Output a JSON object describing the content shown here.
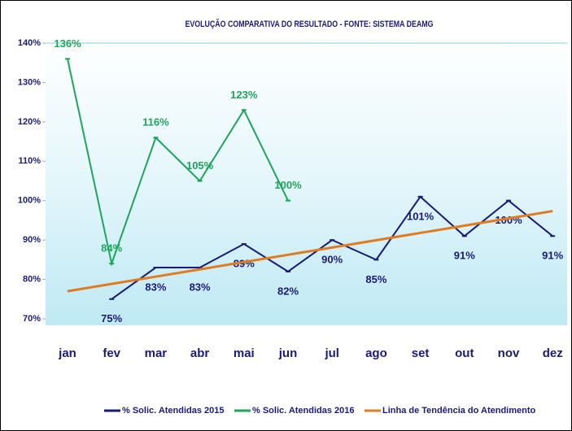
{
  "chart_data": {
    "type": "line",
    "title": "EVOLUÇÃO COMPARATIVA DO RESULTADO - FONTE: SISTEMA DEAMG",
    "categories": [
      "jan",
      "fev",
      "mar",
      "abr",
      "mai",
      "jun",
      "jul",
      "ago",
      "set",
      "out",
      "nov",
      "dez"
    ],
    "series": [
      {
        "name": "% Solic. Atendidas 2015",
        "color": "#1a1a7a",
        "values": [
          null,
          75,
          83,
          83,
          89,
          82,
          90,
          85,
          101,
          91,
          100,
          91
        ],
        "value_labels": [
          null,
          "75%",
          "83%",
          "83%",
          "89%",
          "82%",
          "90%",
          "85%",
          "101%",
          "91%",
          "100%",
          "91%"
        ]
      },
      {
        "name": "% Solic. Atendidas 2016",
        "color": "#1fa55a",
        "values": [
          136,
          84,
          116,
          105,
          123,
          100,
          null,
          null,
          null,
          null,
          null,
          null
        ],
        "value_labels": [
          "136%",
          "84%",
          "116%",
          "105%",
          "123%",
          "100%",
          null,
          null,
          null,
          null,
          null,
          null
        ]
      },
      {
        "name": "Linha de Tendência do Atendimento",
        "color": "#e07b20",
        "values": [
          77,
          78.85,
          80.7,
          82.55,
          84.4,
          86.25,
          88.1,
          89.95,
          91.8,
          93.65,
          95.5,
          97.35
        ]
      }
    ],
    "ylim": [
      70,
      140
    ],
    "yticks": [
      {
        "value": 70,
        "label": "70%"
      },
      {
        "value": 80,
        "label": "80%"
      },
      {
        "value": 90,
        "label": "90%"
      },
      {
        "value": 100,
        "label": "100%"
      },
      {
        "value": 110,
        "label": "110%"
      },
      {
        "value": 120,
        "label": "120%"
      },
      {
        "value": 130,
        "label": "130%"
      },
      {
        "value": 140,
        "label": "140%"
      }
    ],
    "legend": "bottom",
    "grid": false
  }
}
